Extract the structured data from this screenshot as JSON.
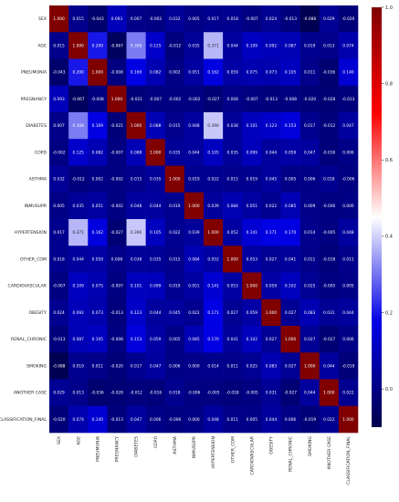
{
  "chart_data": {
    "type": "heatmap",
    "title": "",
    "labels": [
      "SEX",
      "AGE",
      "PNEUMONIA",
      "PREGNANCY",
      "DIABETES",
      "COPD",
      "ASTHMA",
      "INMUSUPR",
      "HYPERTENSION",
      "OTHER_COM",
      "CARDIOVASCULAR",
      "OBESITY",
      "RENAL_CHRONIC",
      "SMOKING",
      "ANOTHER CASE",
      "CLASSIFICATION_FINAL"
    ],
    "values": [
      [
        1.0,
        0.015,
        -0.043,
        0.093,
        0.007,
        -0.002,
        0.032,
        0.005,
        0.017,
        0.018,
        -0.007,
        0.024,
        -0.013,
        -0.088,
        0.029,
        -0.02
      ],
      [
        0.015,
        1.0,
        0.2,
        -0.067,
        0.308,
        0.125,
        -0.012,
        0.035,
        0.371,
        0.044,
        0.109,
        0.092,
        0.087,
        0.019,
        0.013,
        0.074
      ],
      [
        -0.043,
        0.2,
        1.0,
        -0.008,
        0.169,
        0.082,
        0.002,
        0.051,
        0.162,
        0.059,
        0.075,
        0.073,
        0.105,
        0.011,
        -0.036,
        0.14
      ],
      [
        0.093,
        -0.067,
        -0.008,
        1.0,
        -0.021,
        -0.007,
        -0.002,
        -0.002,
        -0.027,
        0.008,
        -0.007,
        -0.013,
        -0.008,
        -0.02,
        -0.028,
        -0.013
      ],
      [
        0.007,
        0.308,
        0.169,
        -0.021,
        1.0,
        0.088,
        0.015,
        0.048,
        0.39,
        0.038,
        0.101,
        0.123,
        0.153,
        0.017,
        -0.012,
        0.047
      ],
      [
        -0.002,
        0.125,
        0.082,
        -0.007,
        0.088,
        1.0,
        0.035,
        0.044,
        0.105,
        0.035,
        0.099,
        0.044,
        0.059,
        0.047,
        -0.016,
        0.006
      ],
      [
        0.032,
        -0.012,
        0.002,
        -0.002,
        0.015,
        0.035,
        1.0,
        0.019,
        0.022,
        0.015,
        0.019,
        0.045,
        0.005,
        0.006,
        0.018,
        -0.006
      ],
      [
        0.005,
        0.035,
        0.051,
        -0.002,
        0.048,
        0.044,
        0.019,
        1.0,
        0.039,
        0.084,
        0.051,
        0.022,
        0.085,
        0.009,
        -0.006,
        0.0
      ],
      [
        0.017,
        0.371,
        0.162,
        -0.027,
        0.39,
        0.105,
        0.022,
        0.039,
        1.0,
        0.052,
        0.141,
        0.171,
        0.17,
        0.014,
        -0.005,
        0.048
      ],
      [
        0.018,
        0.044,
        0.059,
        0.008,
        0.038,
        0.035,
        0.015,
        0.084,
        0.052,
        1.0,
        0.053,
        0.027,
        0.041,
        0.011,
        -0.018,
        0.011
      ],
      [
        -0.007,
        0.109,
        0.075,
        -0.007,
        0.101,
        0.099,
        0.019,
        0.051,
        0.141,
        0.053,
        1.0,
        0.059,
        0.102,
        0.025,
        -0.005,
        0.005
      ],
      [
        0.024,
        0.092,
        0.073,
        -0.013,
        0.123,
        0.044,
        0.045,
        0.022,
        0.171,
        0.027,
        0.059,
        1.0,
        0.027,
        0.083,
        0.031,
        0.044
      ],
      [
        -0.013,
        0.087,
        0.105,
        -0.008,
        0.153,
        0.059,
        0.005,
        0.085,
        0.17,
        0.041,
        0.102,
        0.027,
        1.0,
        0.027,
        -0.027,
        0.006
      ],
      [
        -0.088,
        0.019,
        0.011,
        -0.02,
        0.017,
        0.047,
        0.006,
        0.009,
        0.014,
        0.011,
        0.025,
        0.083,
        0.027,
        1.0,
        0.044,
        -0.019
      ],
      [
        0.029,
        0.013,
        -0.036,
        -0.028,
        -0.012,
        -0.016,
        0.018,
        -0.006,
        -0.005,
        -0.018,
        -0.005,
        0.031,
        -0.027,
        0.044,
        1.0,
        0.022
      ],
      [
        -0.02,
        0.074,
        0.14,
        -0.013,
        0.047,
        0.006,
        -0.006,
        0.0,
        0.048,
        0.011,
        0.005,
        0.044,
        0.006,
        -0.019,
        0.022,
        1.0
      ]
    ],
    "colorbar": {
      "ticks": [
        1.0,
        0.8,
        0.6,
        0.4,
        0.2,
        0.0
      ],
      "tick_labels": [
        "1.0",
        "0.8",
        "0.6",
        "0.4",
        "0.2",
        "0.0"
      ],
      "range": [
        -0.1,
        1.0
      ]
    },
    "colors": {
      "cmap": [
        "#00004c",
        "#0000e6",
        "#ffffff",
        "#ff0000",
        "#800000"
      ]
    },
    "grid": false,
    "legend": "colorbar-right"
  }
}
